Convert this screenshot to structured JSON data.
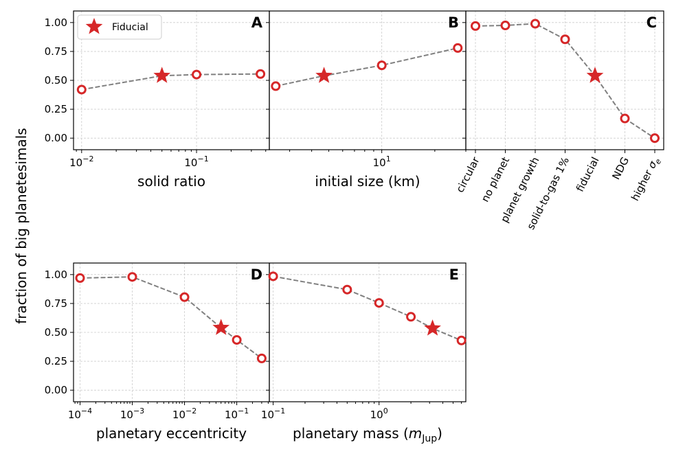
{
  "figure": {
    "ylabel": "fraction of big planetesimals",
    "legend_label": "Fiducial"
  },
  "chart_data": [
    {
      "id": "A",
      "type": "line",
      "panel_label": "A",
      "xscale": "log",
      "xlabel": "solid ratio",
      "xlim": [
        0.0085,
        0.43
      ],
      "ylim": [
        -0.1,
        1.1
      ],
      "xticks": [
        {
          "value": 0.01,
          "label": "10^-2"
        },
        {
          "value": 0.1,
          "label": "10^-1"
        }
      ],
      "yticks": [
        0.0,
        0.25,
        0.5,
        0.75,
        1.0
      ],
      "ytick_labels": [
        "0.00",
        "0.25",
        "0.50",
        "0.75",
        "1.00"
      ],
      "points": [
        {
          "x": 0.01,
          "y": 0.42
        },
        {
          "x": 0.05,
          "y": 0.54,
          "fiducial": true
        },
        {
          "x": 0.1,
          "y": 0.55
        },
        {
          "x": 0.36,
          "y": 0.555
        }
      ],
      "has_legend": true
    },
    {
      "id": "B",
      "type": "line",
      "panel_label": "B",
      "xscale": "log",
      "xlabel": "initial size (km)",
      "xlim": [
        2.3,
        30
      ],
      "ylim": [
        -0.1,
        1.1
      ],
      "xticks": [
        {
          "value": 10,
          "label": "10^1"
        }
      ],
      "yticks": [
        0.0,
        0.25,
        0.5,
        0.75,
        1.0
      ],
      "points": [
        {
          "x": 2.5,
          "y": 0.45
        },
        {
          "x": 4.7,
          "y": 0.54,
          "fiducial": true
        },
        {
          "x": 10,
          "y": 0.63
        },
        {
          "x": 27,
          "y": 0.78
        }
      ]
    },
    {
      "id": "C",
      "type": "line",
      "panel_label": "C",
      "xscale": "category",
      "xlabel": "",
      "categories": [
        "circular",
        "no planet",
        "planet growth",
        "solid-to-gas 1%",
        "fiducial",
        "NDG",
        "higher σ_e"
      ],
      "ylim": [
        -0.1,
        1.1
      ],
      "yticks": [
        0.0,
        0.25,
        0.5,
        0.75,
        1.0
      ],
      "values": [
        0.97,
        0.975,
        0.99,
        0.855,
        0.54,
        0.17,
        0.0
      ],
      "fiducial_index": 4
    },
    {
      "id": "D",
      "type": "line",
      "panel_label": "D",
      "xscale": "log",
      "xlabel": "planetary eccentricity",
      "xlim": [
        7.5e-05,
        0.42
      ],
      "ylim": [
        -0.1,
        1.1
      ],
      "xticks": [
        {
          "value": 0.0001,
          "label": "10^-4"
        },
        {
          "value": 0.001,
          "label": "10^-3"
        },
        {
          "value": 0.01,
          "label": "10^-2"
        },
        {
          "value": 0.1,
          "label": "10^-1"
        }
      ],
      "yticks": [
        0.0,
        0.25,
        0.5,
        0.75,
        1.0
      ],
      "ytick_labels": [
        "0.00",
        "0.25",
        "0.50",
        "0.75",
        "1.00"
      ],
      "points": [
        {
          "x": 0.0001,
          "y": 0.97
        },
        {
          "x": 0.001,
          "y": 0.98
        },
        {
          "x": 0.01,
          "y": 0.805
        },
        {
          "x": 0.05,
          "y": 0.54,
          "fiducial": true
        },
        {
          "x": 0.1,
          "y": 0.435
        },
        {
          "x": 0.3,
          "y": 0.275
        }
      ]
    },
    {
      "id": "E",
      "type": "line",
      "panel_label": "E",
      "xscale": "log",
      "xlabel": "planetary mass (m_Jup)",
      "xlim": [
        0.092,
        6.6
      ],
      "ylim": [
        -0.1,
        1.1
      ],
      "xticks": [
        {
          "value": 0.1,
          "label": "10^-1"
        },
        {
          "value": 1,
          "label": "10^0"
        }
      ],
      "yticks": [
        0.0,
        0.25,
        0.5,
        0.75,
        1.0
      ],
      "points": [
        {
          "x": 0.1,
          "y": 0.985
        },
        {
          "x": 0.5,
          "y": 0.87
        },
        {
          "x": 1.0,
          "y": 0.755
        },
        {
          "x": 2.0,
          "y": 0.635
        },
        {
          "x": 3.2,
          "y": 0.535,
          "fiducial": true
        },
        {
          "x": 6.0,
          "y": 0.43
        }
      ]
    }
  ],
  "colors": {
    "marker": "#d62728",
    "marker_fill": "#ffffff",
    "line": "#808080",
    "grid": "#cccccc",
    "frame": "#000000"
  }
}
